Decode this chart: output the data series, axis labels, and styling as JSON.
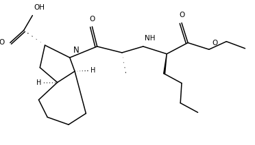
{
  "bg": "#ffffff",
  "lc": "#000000",
  "lw": 1.1,
  "fig_w": 3.72,
  "fig_h": 2.12,
  "dpi": 100,
  "xlim": [
    0,
    10
  ],
  "ylim": [
    0,
    5.7
  ]
}
